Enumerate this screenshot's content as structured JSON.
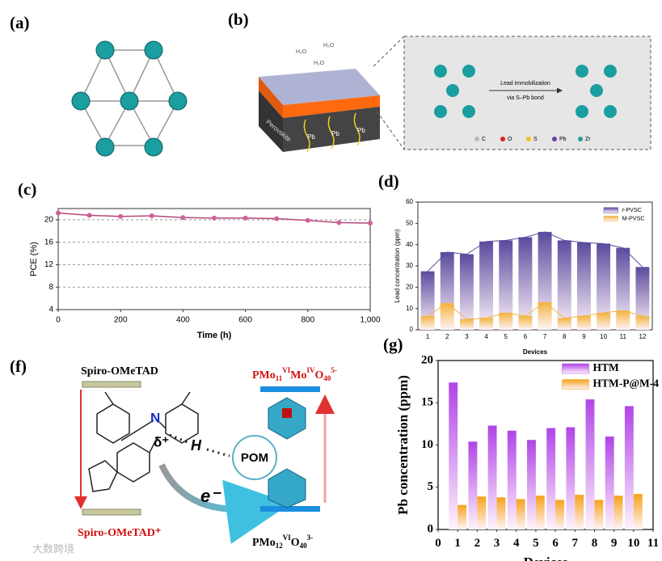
{
  "panels": [
    "(a)",
    "(b)",
    "(c)",
    "(d)",
    "(f)",
    "(g)"
  ],
  "diagram_b": {
    "water": [
      "H₂O",
      "H₂O",
      "H₂O"
    ],
    "layer": "Perovskite",
    "lead": [
      "Pb",
      "Pb",
      "Pb"
    ],
    "arrow_top": "Lead immobilization",
    "arrow_bottom": "via S–Pb bond",
    "legend": [
      {
        "name": "C",
        "color": "#b8b8b8"
      },
      {
        "name": "O",
        "color": "#e02020"
      },
      {
        "name": "S",
        "color": "#f0c020"
      },
      {
        "name": "Pb",
        "color": "#6a3aa8"
      },
      {
        "name": "Zr",
        "color": "#20a0a0"
      }
    ]
  },
  "diagram_f": {
    "donor": "Spiro-OMeTAD",
    "donor_oxidized": "Spiro-OMeTAD⁺",
    "atom": "N",
    "charge": "δ⁺",
    "hydrogen": "H",
    "acceptor": "POM",
    "electron": "e⁻",
    "formula_top": [
      {
        "text": "PMo",
        "pos": "base"
      },
      {
        "text": "11",
        "pos": "sub"
      },
      {
        "text": "VI",
        "pos": "sup"
      },
      {
        "text": "Mo",
        "pos": "base"
      },
      {
        "text": "IV",
        "pos": "sup"
      },
      {
        "text": "O",
        "pos": "base"
      },
      {
        "text": "40",
        "pos": "sub"
      },
      {
        "text": "5-",
        "pos": "sup"
      }
    ],
    "formula_bottom": [
      {
        "text": "PMo",
        "pos": "base"
      },
      {
        "text": "12",
        "pos": "sub"
      },
      {
        "text": "VI",
        "pos": "sup"
      },
      {
        "text": "O",
        "pos": "base"
      },
      {
        "text": "40",
        "pos": "sub"
      },
      {
        "text": "3-",
        "pos": "sup"
      }
    ]
  },
  "watermark": "大数跨境",
  "chart_data": [
    {
      "type": "line",
      "xlabel": "Time (h)",
      "ylabel": "PCE (%)",
      "color": "#b5477a",
      "marker_color": "#d0609a",
      "x": [
        0,
        100,
        200,
        300,
        400,
        500,
        600,
        700,
        800,
        900,
        1000
      ],
      "values": [
        21.2,
        20.8,
        20.6,
        20.7,
        20.4,
        20.3,
        20.3,
        20.2,
        19.9,
        19.5,
        19.4
      ],
      "xlim": [
        0,
        1000
      ],
      "xticks": [
        0,
        200,
        400,
        600,
        800,
        {
          "value": 1000,
          "label": "1,000"
        }
      ],
      "ylim": [
        4,
        22
      ],
      "yticks": [
        4,
        8,
        12,
        16,
        20
      ],
      "grid": true
    },
    {
      "type": "bar",
      "barmode": "overlay",
      "line_overlay": true,
      "xlabel": "Devices",
      "ylabel": "Lead concentration (ppm)",
      "legend": "upper right",
      "categories": [
        "1",
        "2",
        "3",
        "4",
        "5",
        "6",
        "7",
        "8",
        "9",
        "10",
        "11",
        "12"
      ],
      "series": [
        {
          "name": "r-PVSC",
          "color": "#5b4a9e",
          "values": [
            27.5,
            36.5,
            35.5,
            41.5,
            42,
            43.5,
            46,
            42,
            41,
            40.5,
            38.5,
            29.5
          ]
        },
        {
          "name": "M-PVSC",
          "color": "#f2b440",
          "values": [
            6.5,
            12.5,
            5,
            5.5,
            8,
            6.5,
            13,
            5.5,
            6.5,
            8,
            9,
            6.5
          ]
        }
      ],
      "ylim": [
        0,
        60
      ],
      "yticks": [
        0,
        10,
        20,
        30,
        40,
        50,
        60
      ],
      "grid": false
    },
    {
      "type": "bar",
      "barmode": "group",
      "xlabel": "Devices",
      "ylabel": "Pb concentration (ppm)",
      "legend": "upper right",
      "x": [
        1,
        2,
        3,
        4,
        5,
        6,
        7,
        8,
        9,
        10
      ],
      "series": [
        {
          "name": "HTM",
          "color": "#b044e8",
          "values": [
            17.4,
            10.4,
            12.3,
            11.7,
            10.6,
            12.0,
            12.1,
            15.4,
            11.0,
            14.6
          ]
        },
        {
          "name": "HTM-P@M-4",
          "color": "#f7a21b",
          "values": [
            2.9,
            3.9,
            3.8,
            3.6,
            4.0,
            3.5,
            4.1,
            3.5,
            4.0,
            4.2
          ]
        }
      ],
      "xlim": [
        0,
        11
      ],
      "xticks": [
        0,
        1,
        2,
        3,
        4,
        5,
        6,
        7,
        8,
        9,
        10,
        11
      ],
      "ylim": [
        0,
        20
      ],
      "yticks": [
        0,
        5,
        10,
        15,
        20
      ],
      "grid": false
    }
  ]
}
